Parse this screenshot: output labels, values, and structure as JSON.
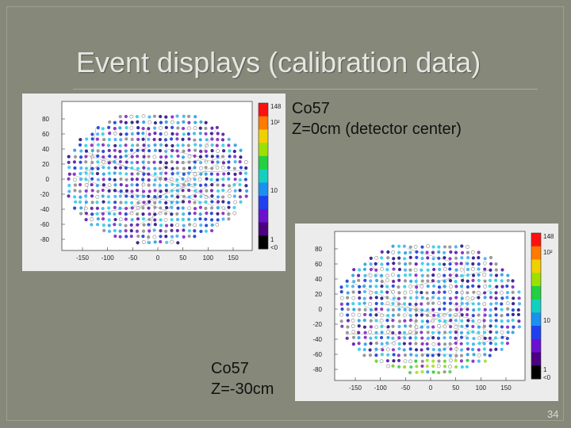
{
  "slide": {
    "title": "Event displays (calibration data)",
    "page_number": "34"
  },
  "top_panel": {
    "caption_line1": "Co57",
    "caption_line2": "Z=0cm (detector center)",
    "y_ticks": [
      "80",
      "60",
      "40",
      "20",
      "0",
      "-20",
      "-40",
      "-60",
      "-80"
    ],
    "x_ticks": [
      "-150",
      "-100",
      "-50",
      "0",
      "50",
      "100",
      "150"
    ],
    "scale_labels": [
      "148",
      "10²",
      "10",
      "1",
      "<0"
    ]
  },
  "bottom_panel": {
    "caption_line1": "Co57",
    "caption_line2": "Z=-30cm",
    "y_ticks": [
      "80",
      "60",
      "40",
      "20",
      "0",
      "-20",
      "-40",
      "-60",
      "-80"
    ],
    "x_ticks": [
      "-150",
      "-100",
      "-50",
      "0",
      "50",
      "100",
      "150"
    ],
    "scale_labels": [
      "148",
      "10²",
      "10",
      "1",
      "<0"
    ]
  },
  "colors": {
    "background": "#86897a",
    "panel": "#ececec"
  }
}
